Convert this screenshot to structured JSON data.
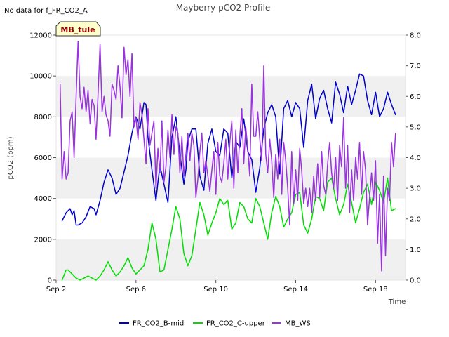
{
  "chart_data": {
    "type": "line",
    "title": "Mayberry pCO2 Profile",
    "note": "No data for f_FR_CO2_A",
    "badge": "MB_tule",
    "xlabel": "Time",
    "ylabel": "pCO2 (ppm)",
    "xlim": [
      0,
      17.5
    ],
    "ylim": [
      0,
      12000
    ],
    "y2lim": [
      0,
      8
    ],
    "x_tick_labels": [
      {
        "x": 0,
        "label": "Sep 2"
      },
      {
        "x": 4,
        "label": "Sep 6"
      },
      {
        "x": 8,
        "label": "Sep 10"
      },
      {
        "x": 12,
        "label": "Sep 14"
      },
      {
        "x": 16,
        "label": "Sep 18"
      }
    ],
    "y_ticks": [
      0,
      2000,
      4000,
      6000,
      8000,
      10000,
      12000
    ],
    "y_tick_labels": [
      "0",
      "2000",
      "4000",
      "6000",
      "8000",
      "10000",
      "12000"
    ],
    "y2_ticks": [
      0,
      1,
      2,
      3,
      4,
      5,
      6,
      7,
      8
    ],
    "y2_tick_labels": [
      "0.0",
      "1.0",
      "2.0",
      "3.0",
      "4.0",
      "5.0",
      "6.0",
      "7.0",
      "8.0"
    ],
    "bands": [
      [
        0,
        2000
      ],
      [
        4000,
        6000
      ],
      [
        8000,
        10000
      ]
    ],
    "series": [
      {
        "name": "FR_CO2_B-mid",
        "color": "#0000cc",
        "axis": "left",
        "x": [
          0.3,
          0.5,
          0.7,
          0.8,
          0.9,
          1.0,
          1.1,
          1.3,
          1.5,
          1.7,
          1.9,
          2.0,
          2.2,
          2.4,
          2.6,
          2.8,
          3.0,
          3.2,
          3.4,
          3.6,
          3.8,
          4.0,
          4.2,
          4.4,
          4.5,
          4.6,
          4.8,
          5.0,
          5.1,
          5.2,
          5.4,
          5.6,
          5.8,
          6.0,
          6.2,
          6.4,
          6.5,
          6.6,
          6.8,
          7.0,
          7.2,
          7.4,
          7.6,
          7.8,
          8.0,
          8.2,
          8.4,
          8.6,
          8.8,
          9.0,
          9.2,
          9.4,
          9.6,
          9.8,
          10.0,
          10.2,
          10.4,
          10.6,
          10.8,
          11.0,
          11.2,
          11.4,
          11.6,
          11.8,
          12.0,
          12.2,
          12.4,
          12.6,
          12.8,
          13.0,
          13.2,
          13.4,
          13.6,
          13.8,
          14.0,
          14.2,
          14.4,
          14.6,
          14.8,
          15.0,
          15.2,
          15.4,
          15.6,
          15.8,
          16.0,
          16.2,
          16.4,
          16.6,
          16.8,
          17.0
        ],
        "y": [
          2900,
          3300,
          3500,
          3200,
          3400,
          2700,
          2700,
          2800,
          3100,
          3600,
          3500,
          3200,
          3900,
          4800,
          5400,
          5000,
          4200,
          4500,
          5300,
          6100,
          7200,
          8000,
          7400,
          8700,
          8600,
          7000,
          5400,
          3900,
          4800,
          5600,
          4700,
          3800,
          7000,
          8000,
          6200,
          4700,
          5400,
          6800,
          7400,
          7400,
          5100,
          4400,
          6700,
          7400,
          6300,
          6100,
          7400,
          7200,
          5000,
          6800,
          6500,
          7900,
          6300,
          5900,
          4300,
          5500,
          7400,
          8200,
          8600,
          8000,
          5200,
          8400,
          8800,
          8000,
          8700,
          8400,
          6500,
          8800,
          9600,
          7900,
          8900,
          9300,
          8400,
          7700,
          9700,
          9100,
          8200,
          9500,
          8600,
          9300,
          10100,
          10000,
          8800,
          8100,
          9200,
          8000,
          8400,
          9200,
          8600,
          8100
        ]
      },
      {
        "name": "FR_CO2_C-upper",
        "color": "#00dd00",
        "axis": "left",
        "x": [
          0.3,
          0.5,
          0.6,
          0.8,
          0.9,
          1.0,
          1.2,
          1.4,
          1.6,
          1.8,
          2.0,
          2.2,
          2.4,
          2.6,
          2.8,
          3.0,
          3.2,
          3.4,
          3.6,
          3.8,
          4.0,
          4.2,
          4.4,
          4.6,
          4.8,
          5.0,
          5.2,
          5.4,
          5.6,
          5.8,
          6.0,
          6.2,
          6.4,
          6.6,
          6.8,
          7.0,
          7.2,
          7.4,
          7.6,
          7.8,
          8.0,
          8.2,
          8.4,
          8.6,
          8.8,
          9.0,
          9.2,
          9.4,
          9.6,
          9.8,
          10.0,
          10.2,
          10.4,
          10.6,
          10.8,
          11.0,
          11.2,
          11.4,
          11.6,
          11.8,
          12.0,
          12.2,
          12.4,
          12.6,
          12.8,
          13.0,
          13.2,
          13.4,
          13.6,
          13.8,
          14.0,
          14.2,
          14.4,
          14.6,
          14.8,
          15.0,
          15.2,
          15.4,
          15.6,
          15.8,
          16.0,
          16.2,
          16.4,
          16.6,
          16.8,
          17.0
        ],
        "y": [
          0,
          500,
          500,
          300,
          200,
          100,
          0,
          100,
          200,
          100,
          0,
          200,
          500,
          900,
          500,
          200,
          400,
          700,
          1100,
          600,
          300,
          500,
          700,
          1500,
          2800,
          2000,
          400,
          500,
          1500,
          2500,
          3600,
          3000,
          1300,
          700,
          1200,
          2500,
          3800,
          3200,
          2200,
          2800,
          3300,
          4000,
          3700,
          3900,
          2500,
          2800,
          3800,
          3600,
          3000,
          2800,
          4000,
          3600,
          2800,
          2000,
          3300,
          4100,
          3600,
          2600,
          3000,
          3300,
          4200,
          4300,
          2700,
          2300,
          3000,
          4100,
          4000,
          3400,
          4800,
          5000,
          4000,
          3200,
          3700,
          4700,
          3800,
          2800,
          3500,
          4300,
          4700,
          3700,
          4800,
          4400,
          3800,
          5000,
          3400,
          3500
        ]
      },
      {
        "name": "MB_WS",
        "color": "#9933dd",
        "axis": "right",
        "x": [
          0.2,
          0.3,
          0.4,
          0.5,
          0.6,
          0.7,
          0.8,
          0.9,
          1.0,
          1.1,
          1.2,
          1.3,
          1.4,
          1.5,
          1.6,
          1.7,
          1.8,
          1.9,
          2.0,
          2.1,
          2.2,
          2.3,
          2.4,
          2.5,
          2.6,
          2.7,
          2.8,
          2.9,
          3.0,
          3.1,
          3.2,
          3.3,
          3.4,
          3.5,
          3.6,
          3.7,
          3.8,
          3.9,
          4.0,
          4.1,
          4.2,
          4.3,
          4.4,
          4.5,
          4.6,
          4.7,
          4.8,
          4.9,
          5.0,
          5.1,
          5.2,
          5.3,
          5.4,
          5.5,
          5.6,
          5.7,
          5.8,
          5.9,
          6.0,
          6.1,
          6.2,
          6.3,
          6.4,
          6.5,
          6.6,
          6.7,
          6.8,
          6.9,
          7.0,
          7.1,
          7.2,
          7.3,
          7.4,
          7.5,
          7.6,
          7.7,
          7.8,
          7.9,
          8.0,
          8.1,
          8.2,
          8.3,
          8.4,
          8.5,
          8.6,
          8.7,
          8.8,
          8.9,
          9.0,
          9.1,
          9.2,
          9.3,
          9.4,
          9.5,
          9.6,
          9.7,
          9.8,
          9.9,
          10.0,
          10.1,
          10.2,
          10.3,
          10.4,
          10.5,
          10.6,
          10.7,
          10.8,
          10.9,
          11.0,
          11.1,
          11.2,
          11.3,
          11.4,
          11.5,
          11.6,
          11.7,
          11.8,
          11.9,
          12.0,
          12.1,
          12.2,
          12.3,
          12.4,
          12.5,
          12.6,
          12.7,
          12.8,
          12.9,
          13.0,
          13.1,
          13.2,
          13.3,
          13.4,
          13.5,
          13.6,
          13.7,
          13.8,
          13.9,
          14.0,
          14.1,
          14.2,
          14.3,
          14.4,
          14.5,
          14.6,
          14.7,
          14.8,
          14.9,
          15.0,
          15.1,
          15.2,
          15.3,
          15.4,
          15.5,
          15.6,
          15.7,
          15.8,
          15.9,
          16.0,
          16.1,
          16.2,
          16.3,
          16.4,
          16.5,
          16.6,
          16.7,
          16.8,
          16.9,
          17.0
        ],
        "y": [
          6.4,
          3.3,
          4.2,
          3.3,
          3.5,
          5.2,
          5.5,
          4.0,
          6.0,
          7.8,
          6.0,
          5.6,
          6.3,
          5.5,
          6.2,
          5.1,
          5.9,
          5.7,
          4.6,
          6.1,
          7.7,
          5.5,
          6.0,
          5.4,
          5.2,
          4.7,
          6.4,
          6.2,
          5.9,
          7.0,
          6.3,
          5.3,
          7.6,
          6.7,
          7.2,
          6.0,
          7.4,
          5.0,
          5.3,
          4.6,
          5.8,
          5.4,
          4.6,
          3.8,
          5.6,
          4.4,
          4.8,
          5.2,
          3.0,
          4.3,
          3.5,
          5.2,
          3.2,
          3.7,
          4.9,
          4.0,
          5.4,
          4.1,
          5.0,
          4.8,
          3.5,
          4.7,
          3.4,
          4.1,
          4.8,
          3.9,
          4.8,
          4.4,
          2.7,
          3.3,
          4.2,
          4.8,
          3.5,
          3.9,
          3.4,
          2.9,
          3.6,
          4.2,
          2.8,
          4.5,
          3.4,
          3.2,
          3.8,
          4.6,
          3.3,
          4.5,
          5.2,
          3.0,
          4.9,
          3.5,
          4.7,
          5.6,
          3.8,
          5.0,
          4.3,
          3.4,
          6.4,
          4.7,
          4.7,
          5.5,
          4.6,
          3.9,
          7.0,
          4.1,
          3.5,
          4.6,
          3.9,
          2.7,
          4.1,
          3.3,
          4.6,
          2.8,
          4.5,
          3.9,
          3.0,
          1.8,
          4.2,
          2.5,
          3.6,
          2.6,
          4.3,
          3.6,
          2.5,
          3.0,
          2.4,
          3.0,
          2.2,
          3.4,
          2.6,
          3.8,
          2.7,
          4.2,
          3.1,
          2.8,
          3.8,
          4.5,
          3.5,
          3.0,
          4.0,
          2.6,
          4.4,
          3.7,
          5.3,
          3.0,
          4.4,
          2.2,
          3.6,
          2.6,
          4.0,
          3.3,
          4.5,
          2.8,
          4.2,
          3.6,
          1.8,
          2.7,
          3.5,
          2.6,
          3.9,
          1.2,
          2.8,
          0.3,
          3.4,
          0.8,
          3.0,
          2.6,
          4.5,
          3.7,
          4.8
        ]
      }
    ],
    "legend_position": "bottom-center"
  }
}
